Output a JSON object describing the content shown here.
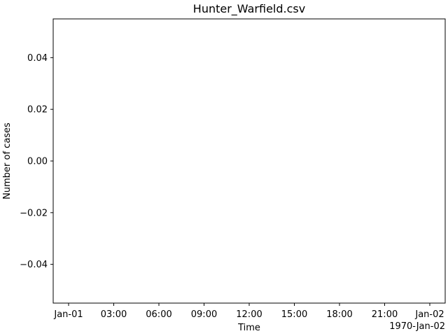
{
  "chart_data": {
    "type": "line",
    "title": "Hunter_Warfield.csv",
    "xlabel": "Time",
    "ylabel": "Number of cases",
    "x_offset_label": "1970-Jan-02",
    "x_ticks": [
      "Jan-01",
      "03:00",
      "06:00",
      "09:00",
      "12:00",
      "15:00",
      "18:00",
      "21:00",
      "Jan-02"
    ],
    "xlim": [
      "1970-01-01 00:00",
      "1970-01-02 00:00"
    ],
    "y_ticks": [
      "−0.04",
      "−0.02",
      "0.00",
      "0.02",
      "0.04"
    ],
    "y_tick_values": [
      -0.04,
      -0.02,
      0.0,
      0.02,
      0.04
    ],
    "ylim": [
      -0.055,
      0.055
    ],
    "series": [],
    "grid": false,
    "legend": "none"
  }
}
